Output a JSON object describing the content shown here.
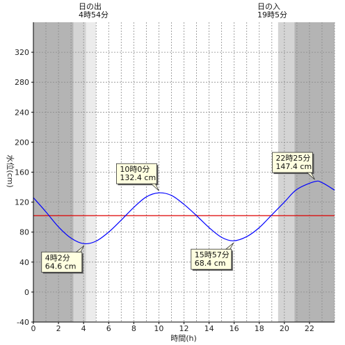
{
  "chart_data": {
    "type": "line",
    "xlabel": "時間(h)",
    "ylabel": "水位(cm)",
    "xlim": [
      0,
      24
    ],
    "ylim": [
      -40,
      360
    ],
    "x_ticks": [
      "0",
      "2",
      "4",
      "6",
      "8",
      "10",
      "12",
      "14",
      "16",
      "18",
      "20",
      "22"
    ],
    "y_ticks": [
      "-40",
      "0",
      "40",
      "80",
      "120",
      "160",
      "200",
      "240",
      "280",
      "320"
    ],
    "x_minor_grid_step": 1,
    "grid": true,
    "mean_level": 102,
    "sunrise": {
      "hour": 4.9,
      "label_top": "日の出",
      "label_bottom": "4時54分"
    },
    "sunset": {
      "hour": 19.083,
      "label_top": "日の入",
      "label_bottom": "19時5分"
    },
    "shading": {
      "night_color": "#b4b4b4",
      "twilight_color": "#d4d4d4",
      "dawn_color": "#ececec",
      "day_color": "#ffffff",
      "night_end": 3.2,
      "twilight_end": 4.2,
      "dawn_end": 5.0,
      "day_end": 19.5,
      "dusk_end": 20.8
    },
    "series": [
      {
        "color": "#0000ff",
        "x": [
          0,
          1,
          2,
          3,
          4.033,
          5,
          6,
          7,
          8,
          9,
          10,
          11,
          12,
          13,
          14,
          15,
          15.95,
          17,
          18,
          19,
          20,
          21,
          22.417,
          23,
          24
        ],
        "values": [
          126,
          107,
          87,
          72,
          64.6,
          68,
          80,
          96,
          113,
          127,
          132.4,
          129,
          117,
          102,
          86,
          73,
          68.4,
          74,
          86,
          103,
          120,
          137,
          147.4,
          146,
          136
        ]
      }
    ],
    "mean_line_color": "#dd0000",
    "annotations": [
      {
        "x": 4.033,
        "y": 64.6,
        "time": "4時2分",
        "level": "64.6 cm",
        "place": "below"
      },
      {
        "x": 10.0,
        "y": 132.4,
        "time": "10時0分",
        "level": "132.4 cm",
        "place": "above"
      },
      {
        "x": 15.95,
        "y": 68.4,
        "time": "15時57分",
        "level": "68.4 cm",
        "place": "below"
      },
      {
        "x": 22.417,
        "y": 147.4,
        "time": "22時25分",
        "level": "147.4 cm",
        "place": "above"
      }
    ]
  }
}
